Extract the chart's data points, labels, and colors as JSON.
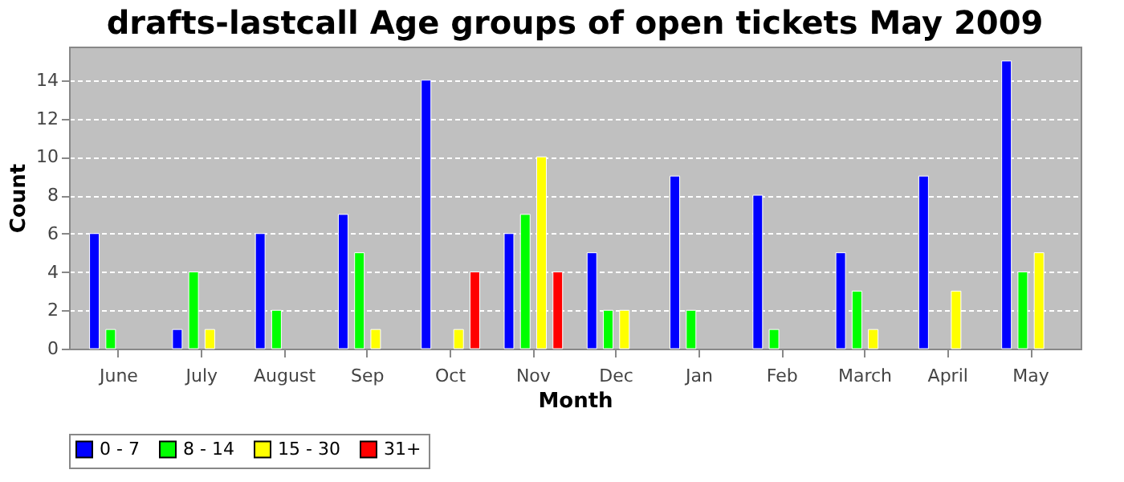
{
  "chart_data": {
    "type": "bar",
    "title": "drafts-lastcall Age groups of open tickets May 2009",
    "xlabel": "Month",
    "ylabel": "Count",
    "categories": [
      "June",
      "July",
      "August",
      "Sep",
      "Oct",
      "Nov",
      "Dec",
      "Jan",
      "Feb",
      "March",
      "April",
      "May"
    ],
    "series": [
      {
        "name": "0 - 7",
        "color": "#0000ff",
        "values": [
          6,
          1,
          6,
          7,
          14,
          6,
          5,
          9,
          8,
          5,
          9,
          15
        ]
      },
      {
        "name": "8 - 14",
        "color": "#00ff00",
        "values": [
          1,
          4,
          2,
          5,
          null,
          7,
          2,
          2,
          1,
          3,
          null,
          4
        ]
      },
      {
        "name": "15 - 30",
        "color": "#ffff00",
        "values": [
          null,
          1,
          null,
          1,
          1,
          10,
          2,
          null,
          null,
          1,
          3,
          5
        ]
      },
      {
        "name": "31+",
        "color": "#ff0000",
        "values": [
          null,
          null,
          null,
          null,
          4,
          4,
          null,
          null,
          null,
          null,
          null,
          null
        ]
      }
    ],
    "ylim": [
      0,
      15.75
    ],
    "yticks": [
      0,
      2,
      4,
      6,
      8,
      10,
      12,
      14
    ],
    "grid": "y",
    "legend": "bottom"
  }
}
